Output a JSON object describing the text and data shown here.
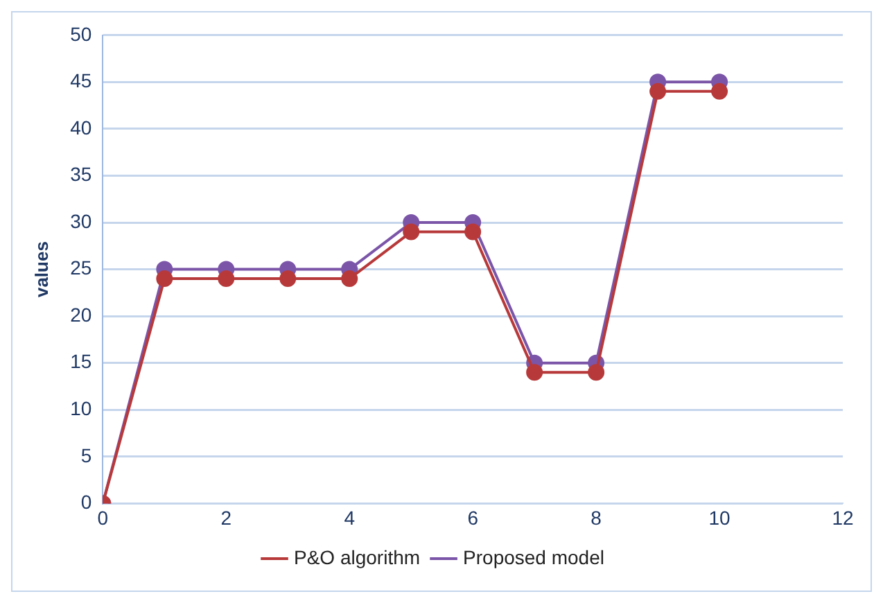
{
  "chart_data": {
    "type": "line",
    "ylabel": "values",
    "x": [
      0,
      1,
      2,
      3,
      4,
      5,
      6,
      7,
      8,
      9,
      10
    ],
    "series": [
      {
        "name": "P&O algorithm",
        "color": "#b8393a",
        "values": [
          0,
          24,
          24,
          24,
          24,
          29,
          29,
          14,
          14,
          44,
          44
        ]
      },
      {
        "name": "Proposed model",
        "color": "#7b55a8",
        "values": [
          0,
          25,
          25,
          25,
          25,
          30,
          30,
          15,
          15,
          45,
          45
        ]
      }
    ],
    "xlim": [
      0,
      12
    ],
    "xticks": [
      0,
      2,
      4,
      6,
      8,
      10,
      12
    ],
    "ylim": [
      0,
      50
    ],
    "yticks": [
      0,
      5,
      10,
      15,
      20,
      25,
      30,
      35,
      40,
      45,
      50
    ],
    "grid": "y",
    "legend": "bottom",
    "marker": "circle",
    "line_style": "solid"
  }
}
